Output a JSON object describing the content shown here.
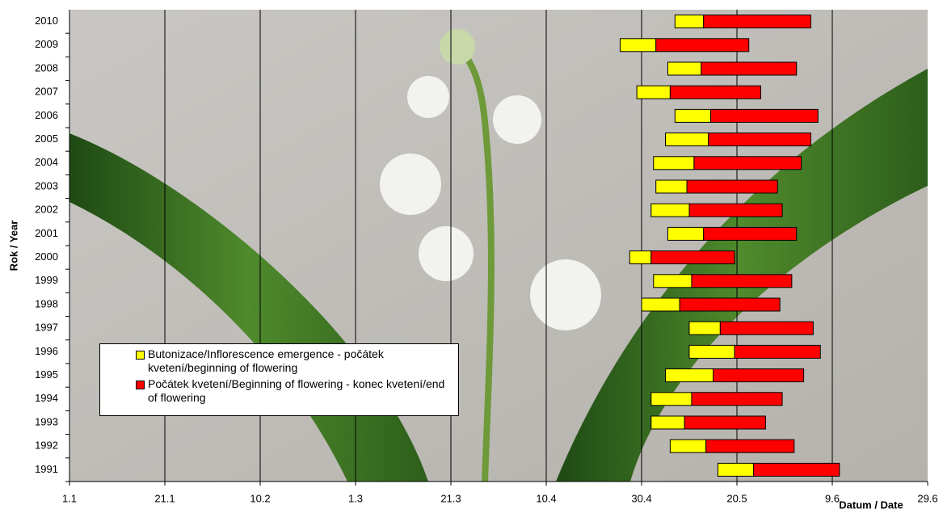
{
  "chart_data": {
    "type": "floating-bar",
    "y_label": "Rok / Year",
    "x_label": "Datum / Date",
    "categories": [
      "1991",
      "1992",
      "1993",
      "1994",
      "1995",
      "1996",
      "1997",
      "1998",
      "1999",
      "2000",
      "2001",
      "2002",
      "2003",
      "2004",
      "2005",
      "2006",
      "2007",
      "2008",
      "2009",
      "2010"
    ],
    "starts": [
      136,
      126,
      122,
      122,
      125,
      130,
      130,
      120,
      122.5,
      117.5,
      125.5,
      122,
      123,
      122.5,
      125,
      127,
      119,
      125.5,
      115.5,
      127
    ],
    "series": [
      {
        "name": "Butonizace/Inflorescence emergence - počátek kvetení/beginning of flowering",
        "color": "#ffff00",
        "values": [
          7.5,
          7.5,
          7,
          8.5,
          10,
          9.5,
          6.5,
          8,
          8,
          4.5,
          7.5,
          8,
          6.5,
          8.5,
          9,
          7.5,
          7,
          7,
          7.5,
          6
        ]
      },
      {
        "name": "Počátek kvetení/Beginning of flowering - konec kvetení/end of flowering",
        "color": "#ff0000",
        "values": [
          18,
          18.5,
          17,
          19,
          19,
          18,
          19.5,
          21,
          21,
          17.5,
          19.5,
          19.5,
          19,
          22.5,
          21.5,
          22.5,
          19,
          20,
          19.5,
          22.5
        ]
      }
    ],
    "xlim": [
      0,
      180
    ],
    "xticks": [
      {
        "value": 0,
        "label": "1.1"
      },
      {
        "value": 20,
        "label": "21.1"
      },
      {
        "value": 40,
        "label": "10.2"
      },
      {
        "value": 60,
        "label": "1.3"
      },
      {
        "value": 80,
        "label": "21.3"
      },
      {
        "value": 100,
        "label": "10.4"
      },
      {
        "value": 120,
        "label": "30.4"
      },
      {
        "value": 140,
        "label": "20.5"
      },
      {
        "value": 160,
        "label": "9.6"
      },
      {
        "value": 180,
        "label": "29.6"
      }
    ],
    "grid": true
  }
}
